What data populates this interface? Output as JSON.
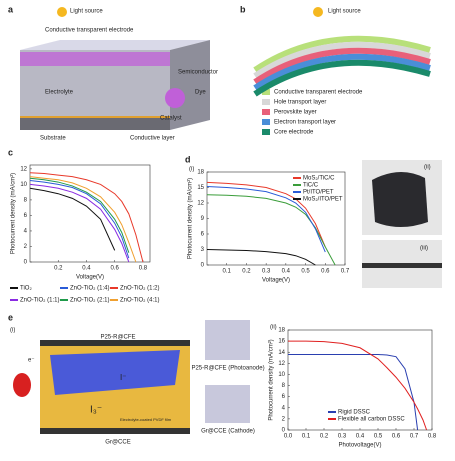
{
  "figure": {
    "a": {
      "panel": "a",
      "light": "Light source",
      "electrode": "Conductive transparent electrode",
      "semiconductor": "Semiconductor",
      "dye": "Dye",
      "electrolyte": "Electrolyte",
      "catalyst": "Catalyst",
      "substrate": "Substrate",
      "conductive": "Conductive layer"
    },
    "b": {
      "panel": "b",
      "light": "Light source",
      "layers": [
        {
          "name": "Conductive transparent electrode",
          "color": "#b8e07a"
        },
        {
          "name": "Hole transport layer",
          "color": "#d8d8d8"
        },
        {
          "name": "Perovskite layer",
          "color": "#e8607a"
        },
        {
          "name": "Electron transport layer",
          "color": "#4a8ed8"
        },
        {
          "name": "Core electrode",
          "color": "#1a8a6a"
        }
      ]
    },
    "d": {
      "photo_ii": "(ii)",
      "photo_iii": "(iii)"
    },
    "e": {
      "panel": "e",
      "sub": "(i)",
      "anode": "P25-R@CFE",
      "anode_photo": "P25-R@CFE (Photoanode)",
      "cathode": "Gr@CCE",
      "cathode_photo": "Gr@CCE (Cathode)",
      "iodide": "I⁻",
      "triiodide": "I₃⁻",
      "electron": "e⁻",
      "electrolyte": "Electrolyte-coated PVDF film"
    }
  },
  "chart_data": [
    {
      "type": "line",
      "panel": "c",
      "xlabel": "Voltage(V)",
      "ylabel": "Photocurrent density (mA/cm²)",
      "x": [
        0,
        0.1,
        0.2,
        0.3,
        0.4,
        0.5,
        0.6,
        0.65,
        0.7,
        0.75,
        0.8
      ],
      "xlim": [
        0,
        0.85
      ],
      "xticks": [
        0.2,
        0.4,
        0.6,
        0.8
      ],
      "ylim": [
        0,
        12.5
      ],
      "yticks": [
        0,
        2,
        4,
        6,
        8,
        10,
        12
      ],
      "legend": "below",
      "series": [
        {
          "name": "TiO₂",
          "color": "#111111",
          "values": [
            9.5,
            9.2,
            8.8,
            8.2,
            7.2,
            5.5,
            1.5,
            null,
            null,
            null,
            null
          ]
        },
        {
          "name": "ZnO-TiO₂ (1:4)",
          "color": "#2a5bd7",
          "values": [
            10.5,
            10.3,
            10,
            9.6,
            8.8,
            7.5,
            5.0,
            3.2,
            0.5,
            null,
            null
          ]
        },
        {
          "name": "ZnO-TiO₂ (1:2)",
          "color": "#e8392a",
          "values": [
            11.5,
            11.4,
            11.2,
            11,
            10.6,
            10,
            8.8,
            7.8,
            6.2,
            3.5,
            0
          ]
        },
        {
          "name": "ZnO-TiO₂ (1:1)",
          "color": "#8a2be2",
          "values": [
            10,
            9.8,
            9.5,
            9,
            8.2,
            6.8,
            4.2,
            2.4,
            0,
            null,
            null
          ]
        },
        {
          "name": "ZnO-TiO₂ (2:1)",
          "color": "#1f9a4a",
          "values": [
            10.8,
            10.6,
            10.3,
            9.8,
            9.0,
            7.8,
            5.5,
            3.8,
            1.2,
            null,
            null
          ]
        },
        {
          "name": "ZnO-TiO₂ (4:1)",
          "color": "#f0a030",
          "values": [
            11,
            10.8,
            10.6,
            10.2,
            9.5,
            8.4,
            6.4,
            4.8,
            2.5,
            0,
            null
          ]
        }
      ]
    },
    {
      "type": "line",
      "panel": "d",
      "sub": "(i)",
      "xlabel": "Voltage(V)",
      "ylabel": "Photocurrent density (mA/cm²)",
      "x": [
        0,
        0.1,
        0.2,
        0.3,
        0.4,
        0.45,
        0.5,
        0.55,
        0.6,
        0.65
      ],
      "xlim": [
        0,
        0.7
      ],
      "xticks": [
        0.1,
        0.2,
        0.3,
        0.4,
        0.5,
        0.6,
        0.7
      ],
      "ylim": [
        0,
        18
      ],
      "yticks": [
        0,
        3,
        6,
        9,
        12,
        15,
        18
      ],
      "legend": "upper right",
      "series": [
        {
          "name": "MoS₂/TiC/C",
          "color": "#e8392a",
          "values": [
            16,
            15.8,
            15.5,
            15,
            13.8,
            12.8,
            11,
            8,
            3.5,
            null
          ]
        },
        {
          "name": "TiC/C",
          "color": "#3a9d3a",
          "values": [
            13.6,
            13.5,
            13.3,
            12.9,
            12,
            11.2,
            9.8,
            7.2,
            3.5,
            0
          ]
        },
        {
          "name": "Pt/ITO/PET",
          "color": "#2a5bd7",
          "values": [
            15.2,
            15,
            14.7,
            14.2,
            13,
            12,
            10.2,
            7,
            2.5,
            null
          ]
        },
        {
          "name": "MoS₂/ITO/PET",
          "color": "#111111",
          "values": [
            3,
            2.9,
            2.8,
            2.6,
            2.2,
            1.8,
            1.1,
            0,
            null,
            null
          ]
        }
      ]
    },
    {
      "type": "line",
      "sub": "(ii)",
      "xlabel": "Photovoltage(V)",
      "ylabel": "Photocurrent density (mA/cm²)",
      "x": [
        0,
        0.1,
        0.2,
        0.3,
        0.4,
        0.5,
        0.55,
        0.6,
        0.65,
        0.7,
        0.72,
        0.75,
        0.77
      ],
      "xlim": [
        0,
        0.8
      ],
      "xticks": [
        {
          "value": 0,
          "label": "0.0"
        },
        0.1,
        0.2,
        0.3,
        0.4,
        0.5,
        0.6,
        0.7,
        0.8
      ],
      "ylim": [
        0,
        18
      ],
      "yticks": [
        0,
        2,
        4,
        6,
        8,
        10,
        12,
        14,
        16,
        18
      ],
      "legend": "lower left",
      "series": [
        {
          "name": "Rigid DSSC",
          "color": "#2a3fb0",
          "values": [
            13.6,
            13.6,
            13.6,
            13.6,
            13.6,
            13.6,
            13.5,
            13.2,
            11,
            5,
            0,
            null,
            null
          ]
        },
        {
          "name": "Flexible all carbon DSSC",
          "color": "#e02020",
          "values": [
            16,
            16,
            15.9,
            15.6,
            14.8,
            12.8,
            11.2,
            9.5,
            7.5,
            5,
            3.8,
            1.8,
            0
          ]
        }
      ]
    }
  ]
}
